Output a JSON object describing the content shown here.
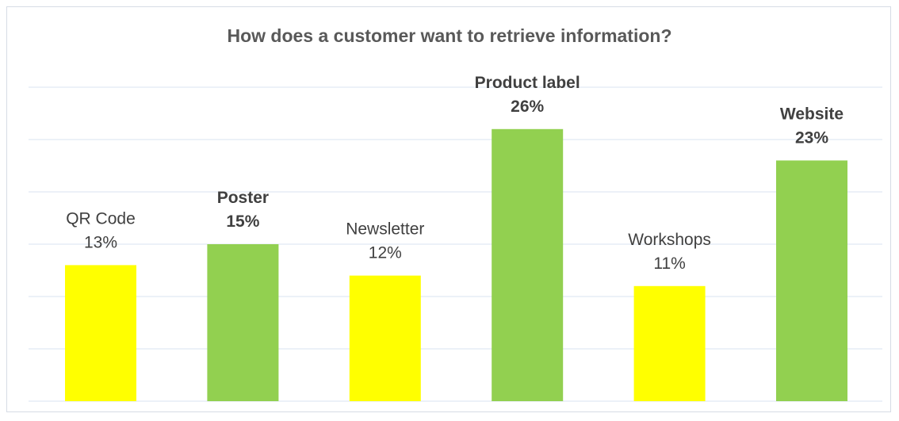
{
  "chart_data": {
    "type": "bar",
    "title": "How does a customer want to retrieve information?",
    "categories": [
      "QR Code",
      "Poster",
      "Newsletter",
      "Product label",
      "Workshops",
      "Website"
    ],
    "values": [
      13,
      15,
      12,
      26,
      11,
      23
    ],
    "value_labels": [
      "13%",
      "15%",
      "12%",
      "26%",
      "11%",
      "23%"
    ],
    "unit": "%",
    "bar_colors": [
      "#ffff00",
      "#92d050",
      "#ffff00",
      "#92d050",
      "#ffff00",
      "#92d050"
    ],
    "bold_labels": [
      false,
      true,
      false,
      true,
      false,
      true
    ],
    "grid_color": "#d9e3f0",
    "gridlines": true,
    "legend": "none",
    "ylim": [
      0,
      30
    ]
  }
}
